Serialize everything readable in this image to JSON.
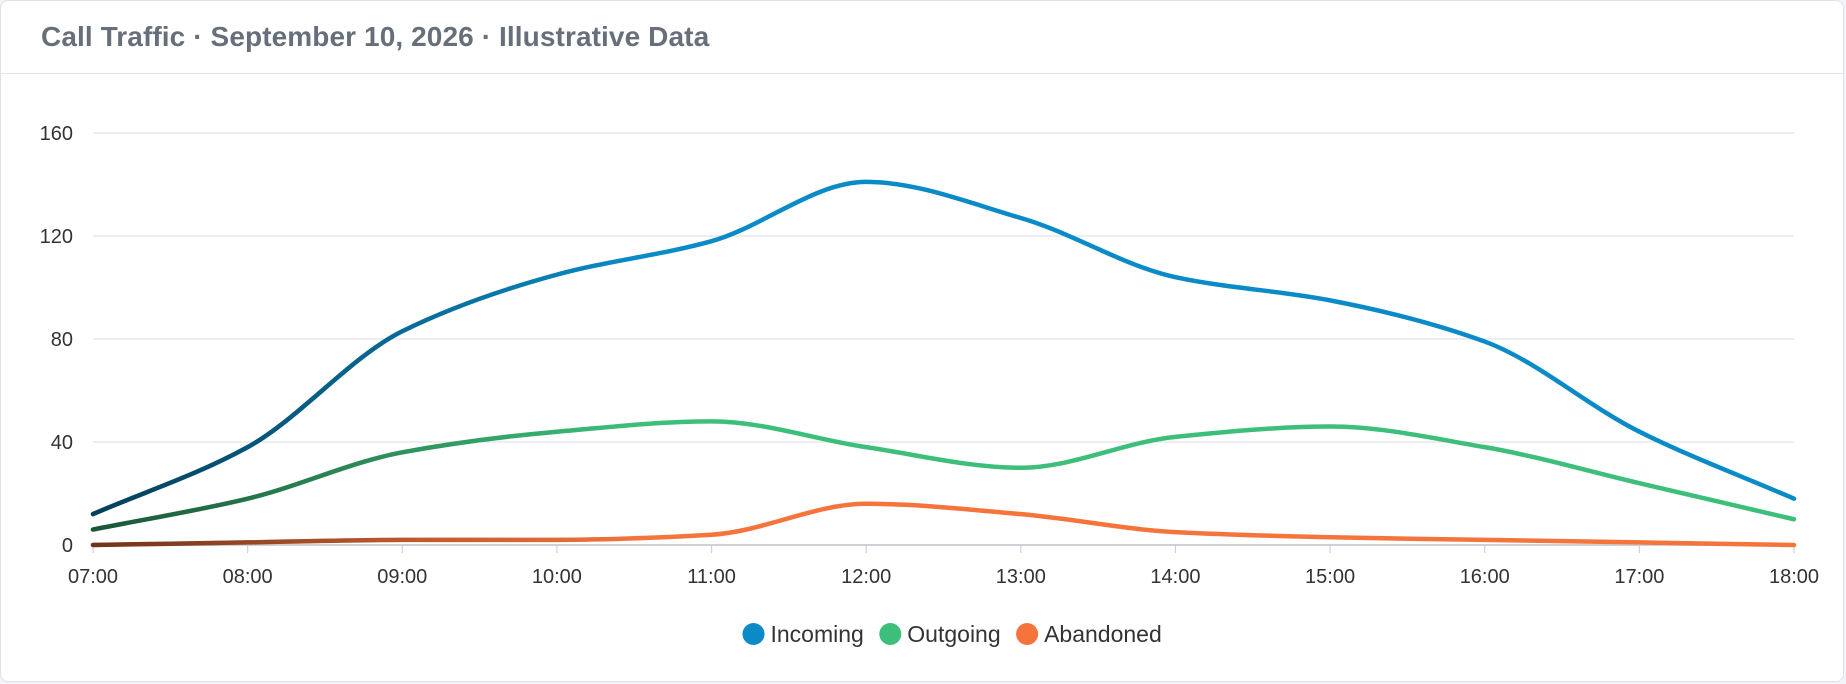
{
  "header": {
    "title": "Call Traffic · September 10, 2026 · Illustrative Data"
  },
  "chart_data": {
    "type": "line",
    "title": "Call Traffic · September 10, 2026 · Illustrative Data",
    "categories": [
      "07:00",
      "08:00",
      "09:00",
      "10:00",
      "11:00",
      "12:00",
      "13:00",
      "14:00",
      "15:00",
      "16:00",
      "17:00",
      "18:00"
    ],
    "ylim": [
      0,
      160
    ],
    "yticks": [
      0,
      40,
      80,
      120,
      160
    ],
    "grid": true,
    "smooth": true,
    "legend_position": "bottom-center",
    "series": [
      {
        "name": "Incoming",
        "color": "#0a8ac6",
        "values": [
          12,
          38,
          83,
          105,
          118,
          141,
          127,
          104,
          95,
          79,
          44,
          18
        ]
      },
      {
        "name": "Outgoing",
        "color": "#3dbf7b",
        "values": [
          6,
          18,
          36,
          44,
          48,
          38,
          30,
          42,
          46,
          38,
          24,
          10
        ]
      },
      {
        "name": "Abandoned",
        "color": "#f4743b",
        "values": [
          0,
          1,
          2,
          2,
          4,
          16,
          12,
          5,
          3,
          2,
          1,
          0
        ]
      }
    ]
  }
}
